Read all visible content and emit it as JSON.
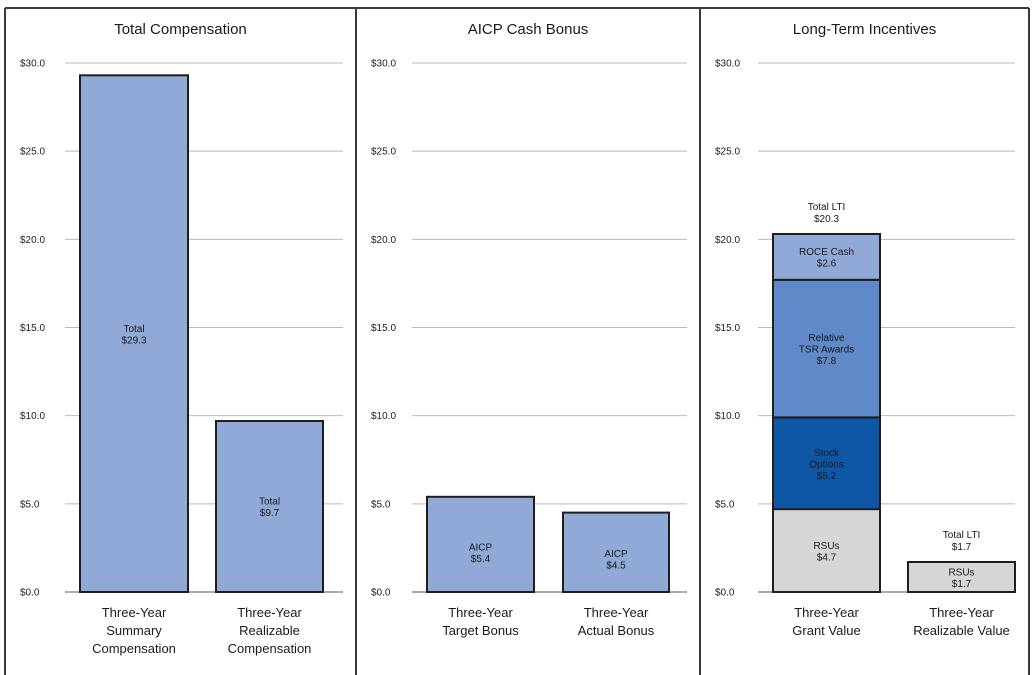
{
  "chart_data": [
    {
      "type": "bar",
      "title": "Total Compensation",
      "ylim": [
        0,
        30
      ],
      "yticks": [
        "$0.0",
        "$5.0",
        "$10.0",
        "$15.0",
        "$20.0",
        "$25.0",
        "$30.0"
      ],
      "categories": [
        "Three-Year Summary Compensation",
        "Three-Year Realizable Compensation"
      ],
      "category_lines": [
        [
          "Three-Year",
          "Summary",
          "Compensation"
        ],
        [
          "Three-Year",
          "Realizable",
          "Compensation"
        ]
      ],
      "stacks": [
        [
          {
            "name": "Total",
            "value": 29.3,
            "label": [
              "Total",
              "$29.3"
            ],
            "color": "#91a9d7"
          }
        ],
        [
          {
            "name": "Total",
            "value": 9.7,
            "label": [
              "Total",
              "$9.7"
            ],
            "color": "#91a9d7"
          }
        ]
      ]
    },
    {
      "type": "bar",
      "title": "AICP Cash Bonus",
      "ylim": [
        0,
        30
      ],
      "yticks": [
        "$0.0",
        "$5.0",
        "$10.0",
        "$15.0",
        "$20.0",
        "$25.0",
        "$30.0"
      ],
      "categories": [
        "Three-Year Target Bonus",
        "Three-Year Actual Bonus"
      ],
      "category_lines": [
        [
          "Three-Year",
          "Target Bonus"
        ],
        [
          "Three-Year",
          "Actual Bonus"
        ]
      ],
      "stacks": [
        [
          {
            "name": "AICP",
            "value": 5.4,
            "label": [
              "AICP",
              "$5.4"
            ],
            "color": "#91a9d7"
          }
        ],
        [
          {
            "name": "AICP",
            "value": 4.5,
            "label": [
              "AICP",
              "$4.5"
            ],
            "color": "#91a9d7"
          }
        ]
      ]
    },
    {
      "type": "bar",
      "stacked": true,
      "title": "Long-Term Incentives",
      "ylim": [
        0,
        30
      ],
      "yticks": [
        "$0.0",
        "$5.0",
        "$10.0",
        "$15.0",
        "$20.0",
        "$25.0",
        "$30.0"
      ],
      "categories": [
        "Three-Year Grant Value",
        "Three-Year Realizable Value"
      ],
      "category_lines": [
        [
          "Three-Year",
          "Grant Value"
        ],
        [
          "Three-Year",
          "Realizable Value"
        ]
      ],
      "totals": [
        {
          "value": 20.3,
          "label": [
            "Total LTI",
            "$20.3"
          ]
        },
        {
          "value": 1.7,
          "label": [
            "Total LTI",
            "$1.7"
          ]
        }
      ],
      "stacks": [
        [
          {
            "name": "RSUs",
            "value": 4.7,
            "label": [
              "RSUs",
              "$4.7"
            ],
            "color": "#d6d6d6",
            "text_color": "#1a1a1a"
          },
          {
            "name": "Stock Options",
            "value": 5.2,
            "label": [
              "Stock",
              "Options",
              "$5.2"
            ],
            "color": "#0e56a6",
            "text_color": "#ffffff"
          },
          {
            "name": "Relative TSR Awards",
            "value": 7.8,
            "label": [
              "Relative",
              "TSR Awards",
              "$7.8"
            ],
            "color": "#5f89c8",
            "text_color": "#ffffff"
          },
          {
            "name": "ROCE Cash",
            "value": 2.6,
            "label": [
              "ROCE Cash",
              "$2.6"
            ],
            "color": "#91a9d7",
            "text_color": "#1a1a1a"
          }
        ],
        [
          {
            "name": "RSUs",
            "value": 1.7,
            "label": [
              "RSUs",
              "$1.7"
            ],
            "color": "#d6d6d6",
            "text_color": "#1a1a1a"
          }
        ]
      ]
    }
  ]
}
